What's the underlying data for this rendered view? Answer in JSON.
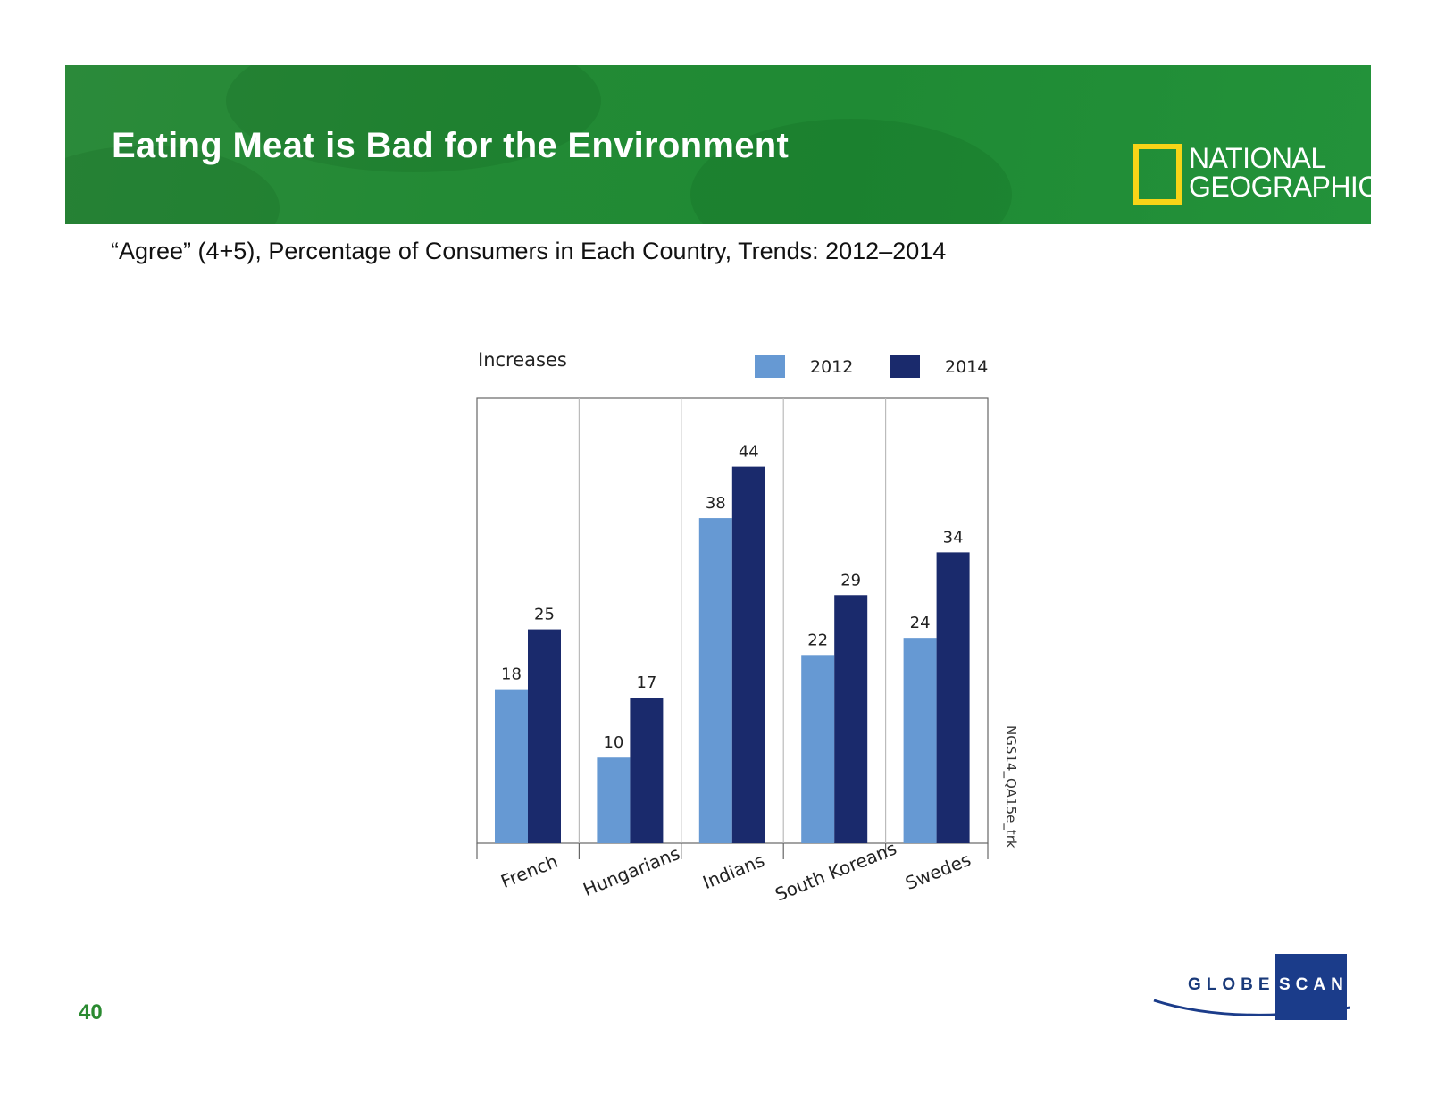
{
  "slide": {
    "title": "Eating Meat is Bad for the Environment",
    "subtitle": "“Agree” (4+5), Percentage of Consumers in Each Country, Trends: 2012–2014",
    "page_number": "40",
    "logo_top": "NATIONAL",
    "logo_bottom": "GEOGRAPHIC",
    "footer_logo_left": "GLOBE",
    "footer_logo_right": "SCAN",
    "colors": {
      "banner": "#238a35",
      "logo_yellow": "#f7d417",
      "globescan_blue": "#1b3c8a",
      "page_number": "#2a8a30"
    }
  },
  "chart_data": {
    "type": "bar",
    "title": "Increases",
    "categories": [
      "French",
      "Hungarians",
      "Indians",
      "South Koreans",
      "Swedes"
    ],
    "series": [
      {
        "name": "2012",
        "values": [
          18,
          10,
          38,
          22,
          24
        ],
        "color": "#6699d3"
      },
      {
        "name": "2014",
        "values": [
          25,
          17,
          44,
          29,
          34
        ],
        "color": "#1a2a6c"
      }
    ],
    "ylim": [
      0,
      52
    ],
    "grid": false,
    "legend": "top-right",
    "data_labels": true,
    "side_note": "NGS14_QA15e_trk"
  }
}
